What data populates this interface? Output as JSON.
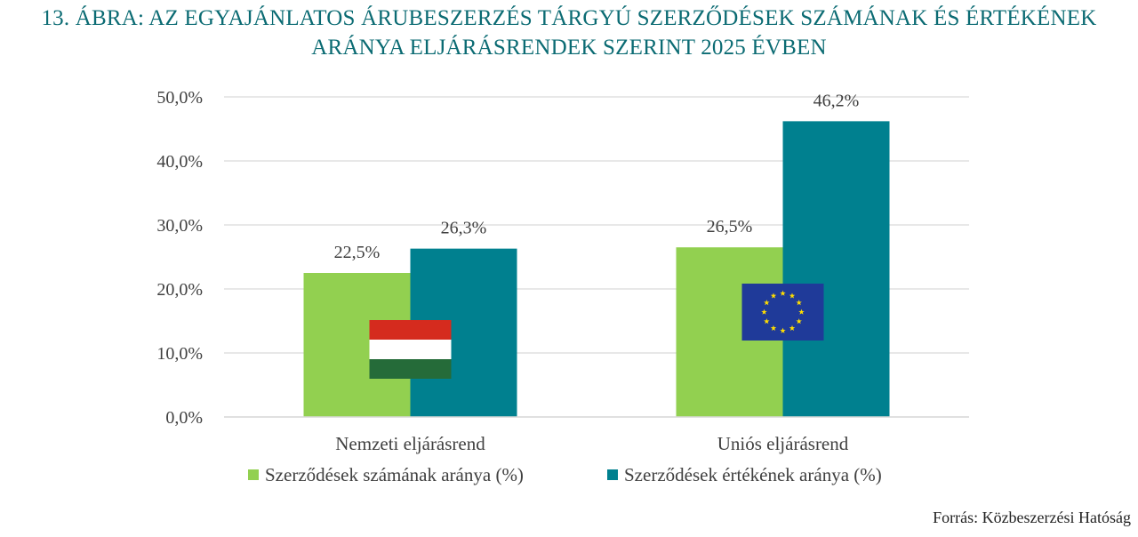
{
  "title": {
    "line1": "13.  ÁBRA:  AZ EGYAJÁNLATOS ÁRUBESZERZÉS TÁRGYÚ SZERZŐDÉSEK SZÁMÁNAK ÉS ÉRTÉKÉNEK",
    "line2": "ARÁNYA ELJÁRÁSRENDEK SZERINT 2025 ÉVBEN"
  },
  "source": "Forrás: Közbeszerzési Hatóság",
  "chart_data": {
    "type": "bar",
    "title": "13.  ÁBRA:  AZ EGYAJÁNLATOS ÁRUBESZERZÉS TÁRGYÚ SZERZŐDÉSEK SZÁMÁNAK ÉS ÉRTÉKÉNEK ARÁNYA ELJÁRÁSRENDEK SZERINT 2025 ÉVBEN",
    "categories": [
      "Nemzeti eljárásrend",
      "Uniós eljárásrend"
    ],
    "series": [
      {
        "name": "Szerződések számának aránya (%)",
        "values": [
          22.5,
          26.5
        ],
        "labels": [
          "22,5%",
          "26,5%"
        ],
        "color": "#92d050"
      },
      {
        "name": "Szerződések értékének aránya (%)",
        "values": [
          26.3,
          46.2
        ],
        "labels": [
          "26,3%",
          "46,2%"
        ],
        "color": "#00808f"
      }
    ],
    "yticks": [
      0,
      10,
      20,
      30,
      40,
      50
    ],
    "ytick_labels": [
      "0,0%",
      "10,0%",
      "20,0%",
      "30,0%",
      "40,0%",
      "50,0%"
    ],
    "ylim": [
      0,
      50
    ],
    "grid": true,
    "legend_position": "bottom",
    "flags": [
      "hungary-flag",
      "eu-flag"
    ]
  }
}
